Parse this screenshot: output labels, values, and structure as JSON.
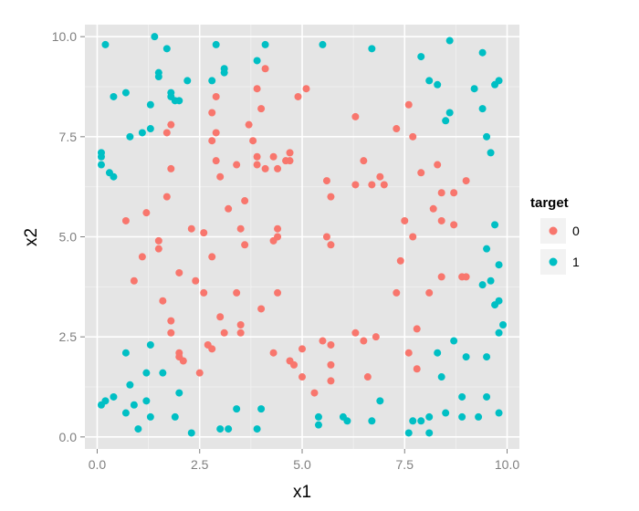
{
  "chart_data": {
    "type": "scatter",
    "title": "",
    "xlabel": "x1",
    "ylabel": "x2",
    "xlim": [
      -0.3,
      10.3
    ],
    "ylim": [
      -0.3,
      10.3
    ],
    "xticks": [
      0.0,
      2.5,
      5.0,
      7.5,
      10.0
    ],
    "yticks": [
      0.0,
      2.5,
      5.0,
      7.5,
      10.0
    ],
    "xtick_labels": [
      "0.0",
      "2.5",
      "5.0",
      "7.5",
      "10.0"
    ],
    "ytick_labels": [
      "0.0",
      "2.5",
      "5.0",
      "7.5",
      "10.0"
    ],
    "grid": true,
    "legend": {
      "title": "target",
      "position": "right",
      "entries": [
        {
          "label": "0",
          "color": "#F8766D"
        },
        {
          "label": "1",
          "color": "#00BFC4"
        }
      ]
    },
    "series": [
      {
        "name": "0",
        "color": "#F8766D",
        "points": [
          [
            1.2,
            5.6
          ],
          [
            0.7,
            5.4
          ],
          [
            1.1,
            4.5
          ],
          [
            0.9,
            3.9
          ],
          [
            1.5,
            4.9
          ],
          [
            1.5,
            4.7
          ],
          [
            1.6,
            3.4
          ],
          [
            1.8,
            2.9
          ],
          [
            1.8,
            2.6
          ],
          [
            2.0,
            2.1
          ],
          [
            2.0,
            2.0
          ],
          [
            2.1,
            1.9
          ],
          [
            2.0,
            4.1
          ],
          [
            2.4,
            3.9
          ],
          [
            2.3,
            5.2
          ],
          [
            2.5,
            1.6
          ],
          [
            2.6,
            3.6
          ],
          [
            2.6,
            5.1
          ],
          [
            2.7,
            2.3
          ],
          [
            2.8,
            2.2
          ],
          [
            2.8,
            4.5
          ],
          [
            3.0,
            3.0
          ],
          [
            3.1,
            2.6
          ],
          [
            3.2,
            5.7
          ],
          [
            3.4,
            3.6
          ],
          [
            3.5,
            2.8
          ],
          [
            3.5,
            2.6
          ],
          [
            3.5,
            5.2
          ],
          [
            3.6,
            5.9
          ],
          [
            3.6,
            4.8
          ],
          [
            4.0,
            3.2
          ],
          [
            4.1,
            6.7
          ],
          [
            4.3,
            2.1
          ],
          [
            4.3,
            4.9
          ],
          [
            4.4,
            5.0
          ],
          [
            4.4,
            5.2
          ],
          [
            4.4,
            3.6
          ],
          [
            4.6,
            6.9
          ],
          [
            4.7,
            7.1
          ],
          [
            4.7,
            6.9
          ],
          [
            4.7,
            1.9
          ],
          [
            4.8,
            1.8
          ],
          [
            5.0,
            1.5
          ],
          [
            5.0,
            2.2
          ],
          [
            5.3,
            1.1
          ],
          [
            5.5,
            2.4
          ],
          [
            5.6,
            5.0
          ],
          [
            5.6,
            6.4
          ],
          [
            5.7,
            6.0
          ],
          [
            5.7,
            4.8
          ],
          [
            5.7,
            2.3
          ],
          [
            5.7,
            1.8
          ],
          [
            5.7,
            1.4
          ],
          [
            6.3,
            2.6
          ],
          [
            6.3,
            8.0
          ],
          [
            6.3,
            6.3
          ],
          [
            6.5,
            2.4
          ],
          [
            6.5,
            6.9
          ],
          [
            6.6,
            1.5
          ],
          [
            6.7,
            6.3
          ],
          [
            6.8,
            2.5
          ],
          [
            6.9,
            6.5
          ],
          [
            7.0,
            6.3
          ],
          [
            7.3,
            7.7
          ],
          [
            7.3,
            3.6
          ],
          [
            7.4,
            4.4
          ],
          [
            7.5,
            5.4
          ],
          [
            7.6,
            8.3
          ],
          [
            7.6,
            2.1
          ],
          [
            7.7,
            7.5
          ],
          [
            7.7,
            5.0
          ],
          [
            7.8,
            2.7
          ],
          [
            7.9,
            6.6
          ],
          [
            7.8,
            1.7
          ],
          [
            8.1,
            3.6
          ],
          [
            8.2,
            5.7
          ],
          [
            8.3,
            6.8
          ],
          [
            8.4,
            6.1
          ],
          [
            8.4,
            5.4
          ],
          [
            8.4,
            4.0
          ],
          [
            8.7,
            6.1
          ],
          [
            8.7,
            5.3
          ],
          [
            8.9,
            4.0
          ],
          [
            9.0,
            6.4
          ],
          [
            9.0,
            4.0
          ],
          [
            1.7,
            7.6
          ],
          [
            1.7,
            6.0
          ],
          [
            1.8,
            6.7
          ],
          [
            1.8,
            7.8
          ],
          [
            2.8,
            7.4
          ],
          [
            2.8,
            8.1
          ],
          [
            2.9,
            8.5
          ],
          [
            2.9,
            7.6
          ],
          [
            2.9,
            6.9
          ],
          [
            3.0,
            6.5
          ],
          [
            3.4,
            6.8
          ],
          [
            3.7,
            7.8
          ],
          [
            3.8,
            7.4
          ],
          [
            3.9,
            7.0
          ],
          [
            3.9,
            6.8
          ],
          [
            3.9,
            8.7
          ],
          [
            4.0,
            8.2
          ],
          [
            4.1,
            9.2
          ],
          [
            4.3,
            7.0
          ],
          [
            4.4,
            6.7
          ],
          [
            4.9,
            8.5
          ],
          [
            5.1,
            8.7
          ]
        ]
      },
      {
        "name": "1",
        "color": "#00BFC4",
        "points": [
          [
            0.2,
            9.8
          ],
          [
            0.4,
            8.5
          ],
          [
            0.7,
            8.6
          ],
          [
            0.8,
            7.5
          ],
          [
            1.1,
            7.6
          ],
          [
            1.3,
            7.7
          ],
          [
            1.3,
            8.3
          ],
          [
            1.4,
            10.0
          ],
          [
            1.5,
            9.1
          ],
          [
            1.5,
            9.0
          ],
          [
            1.7,
            9.7
          ],
          [
            1.8,
            8.6
          ],
          [
            1.8,
            8.5
          ],
          [
            1.9,
            8.4
          ],
          [
            2.0,
            8.4
          ],
          [
            2.2,
            8.9
          ],
          [
            2.8,
            8.9
          ],
          [
            2.9,
            9.8
          ],
          [
            3.1,
            9.2
          ],
          [
            3.1,
            9.1
          ],
          [
            3.9,
            9.4
          ],
          [
            4.1,
            9.8
          ],
          [
            5.5,
            9.8
          ],
          [
            6.7,
            9.7
          ],
          [
            7.9,
            9.5
          ],
          [
            8.1,
            8.9
          ],
          [
            8.3,
            8.8
          ],
          [
            8.5,
            7.9
          ],
          [
            8.6,
            8.1
          ],
          [
            8.6,
            9.9
          ],
          [
            9.2,
            8.7
          ],
          [
            9.4,
            9.6
          ],
          [
            9.4,
            8.2
          ],
          [
            9.5,
            7.5
          ],
          [
            9.6,
            7.1
          ],
          [
            9.7,
            8.8
          ],
          [
            9.8,
            8.9
          ],
          [
            0.1,
            7.1
          ],
          [
            0.1,
            7.0
          ],
          [
            0.1,
            6.8
          ],
          [
            0.3,
            6.6
          ],
          [
            0.4,
            6.5
          ],
          [
            9.7,
            5.3
          ],
          [
            9.5,
            4.7
          ],
          [
            9.8,
            4.3
          ],
          [
            9.6,
            3.9
          ],
          [
            9.4,
            3.8
          ],
          [
            9.7,
            3.3
          ],
          [
            9.8,
            3.4
          ],
          [
            9.8,
            2.6
          ],
          [
            9.9,
            2.8
          ],
          [
            9.5,
            2.0
          ],
          [
            9.0,
            2.0
          ],
          [
            8.7,
            2.4
          ],
          [
            8.3,
            2.1
          ],
          [
            8.4,
            1.5
          ],
          [
            7.9,
            0.4
          ],
          [
            8.1,
            0.5
          ],
          [
            8.1,
            0.1
          ],
          [
            7.6,
            0.1
          ],
          [
            7.7,
            0.4
          ],
          [
            8.5,
            0.6
          ],
          [
            8.9,
            0.5
          ],
          [
            8.9,
            1.0
          ],
          [
            9.3,
            0.5
          ],
          [
            9.5,
            1.0
          ],
          [
            9.8,
            0.6
          ],
          [
            0.1,
            0.8
          ],
          [
            0.2,
            0.9
          ],
          [
            0.4,
            1.0
          ],
          [
            0.7,
            2.1
          ],
          [
            0.8,
            1.3
          ],
          [
            0.9,
            0.8
          ],
          [
            1.0,
            0.2
          ],
          [
            1.2,
            0.9
          ],
          [
            1.2,
            1.6
          ],
          [
            1.3,
            2.3
          ],
          [
            1.3,
            0.5
          ],
          [
            1.6,
            1.6
          ],
          [
            2.0,
            1.1
          ],
          [
            2.3,
            0.1
          ],
          [
            3.0,
            0.2
          ],
          [
            3.2,
            0.2
          ],
          [
            3.4,
            0.7
          ],
          [
            3.9,
            0.2
          ],
          [
            4.0,
            0.7
          ],
          [
            5.4,
            0.5
          ],
          [
            5.4,
            0.3
          ],
          [
            6.0,
            0.5
          ],
          [
            6.1,
            0.4
          ],
          [
            6.7,
            0.4
          ],
          [
            6.9,
            0.9
          ],
          [
            0.7,
            0.6
          ],
          [
            1.9,
            0.5
          ]
        ]
      }
    ]
  }
}
